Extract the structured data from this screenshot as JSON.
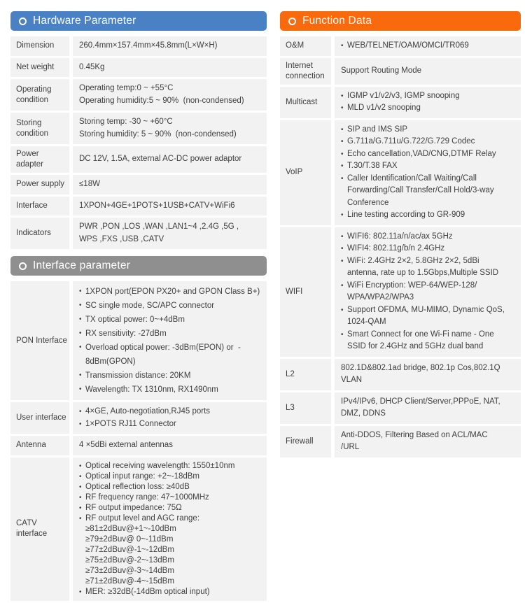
{
  "page": {
    "background": "#ffffff",
    "row_bg": "#f2f2f2",
    "text_color": "#3e3e3e"
  },
  "icons": {
    "header_bullet": "circle-outline",
    "list_bullet": "dot"
  },
  "sections": [
    {
      "id": "hardware-parameter",
      "column": "left",
      "title": "Hardware Parameter",
      "accent": "#4a81c4",
      "rows": [
        {
          "label": "Dimension",
          "lines": [
            {
              "t": "260.4mm×157.4mm×45.8mm(L×W×H)"
            }
          ]
        },
        {
          "label": "Net weight",
          "lines": [
            {
              "t": "0.45Kg"
            }
          ]
        },
        {
          "label": "Operating condition",
          "lines": [
            {
              "t": "Operating temp:0 ~ +55°C"
            },
            {
              "t": "Operating humidity:5 ~ 90%  (non-condensed)"
            }
          ]
        },
        {
          "label": "Storing condition",
          "lines": [
            {
              "t": "Storing temp: -30 ~ +60°C"
            },
            {
              "t": "Storing humidity: 5 ~ 90%  (non-condensed)"
            }
          ]
        },
        {
          "label": "Power adapter",
          "lines": [
            {
              "t": "DC 12V, 1.5A, external AC-DC power adaptor"
            }
          ]
        },
        {
          "label": "Power supply",
          "lines": [
            {
              "t": "≤18W"
            }
          ]
        },
        {
          "label": "Interface",
          "lines": [
            {
              "t": "1XPON+4GE+1POTS+1USB+CATV+WiFi6"
            }
          ]
        },
        {
          "label": "Indicators",
          "lines": [
            {
              "t": "PWR ,PON ,LOS ,WAN ,LAN1~4 ,2.4G ,5G ,"
            },
            {
              "t": "WPS ,FXS ,USB ,CATV"
            }
          ]
        }
      ]
    },
    {
      "id": "interface-parameter",
      "column": "left",
      "title": "Interface parameter",
      "accent": "#8f8f8f",
      "rows": [
        {
          "label": "PON Interface",
          "density": "roomy",
          "lines": [
            {
              "t": "1XPON port(EPON PX20+ and GPON Class B+)",
              "bullet": true
            },
            {
              "t": "SC single mode, SC/APC connector",
              "bullet": true
            },
            {
              "t": "TX optical power: 0~+4dBm",
              "bullet": true
            },
            {
              "t": "RX sensitivity: -27dBm",
              "bullet": true
            },
            {
              "t": "Overload optical power: -3dBm(EPON) or  -",
              "bullet": true
            },
            {
              "t": "8dBm(GPON)",
              "indent": true
            },
            {
              "t": "Transmission distance: 20KM",
              "bullet": true
            },
            {
              "t": "Wavelength: TX 1310nm, RX1490nm",
              "bullet": true
            }
          ]
        },
        {
          "label": "User interface",
          "lines": [
            {
              "t": "4×GE, Auto-negotiation,RJ45 ports",
              "bullet": true
            },
            {
              "t": "1×POTS RJ11 Connector",
              "bullet": true
            }
          ]
        },
        {
          "label": "Antenna",
          "lines": [
            {
              "t": "4 ×5dBi external antennas"
            }
          ]
        },
        {
          "label": "CATV interface",
          "density": "compact",
          "lines": [
            {
              "t": "Optical receiving wavelength: 1550±10nm",
              "bullet": true
            },
            {
              "t": "Optical input range: +2~-18dBm",
              "bullet": true
            },
            {
              "t": "Optical reflection loss: ≥40dB",
              "bullet": true
            },
            {
              "t": "RF frequency range: 47~1000MHz",
              "bullet": true
            },
            {
              "t": "RF output impedance: 75Ω",
              "bullet": true
            },
            {
              "t": "RF output level and AGC range:",
              "bullet": true
            },
            {
              "t": "≥81±2dBuv@+1~-10dBm",
              "indent": true
            },
            {
              "t": "≥79±2dBuv@ 0~-11dBm",
              "indent": true
            },
            {
              "t": "≥77±2dBuv@-1~-12dBm",
              "indent": true
            },
            {
              "t": "≥75±2dBuv@-2~-13dBm",
              "indent": true
            },
            {
              "t": "≥73±2dBuv@-3~-14dBm",
              "indent": true
            },
            {
              "t": "≥71±2dBuv@-4~-15dBm",
              "indent": true
            },
            {
              "t": "MER: ≥32dB(-14dBm optical input)",
              "bullet": true
            }
          ]
        }
      ]
    },
    {
      "id": "function-data",
      "column": "right",
      "title": "Function Data",
      "accent": "#f9690e",
      "rows": [
        {
          "label": "O&M",
          "lines": [
            {
              "t": "WEB/TELNET/OAM/OMCI/TR069",
              "bullet": true
            }
          ]
        },
        {
          "label": "Internet connection",
          "lines": [
            {
              "t": "Support Routing Mode"
            }
          ]
        },
        {
          "label": "Multicast",
          "lines": [
            {
              "t": "IGMP v1/v2/v3, IGMP snooping",
              "bullet": true
            },
            {
              "t": "MLD v1/v2 snooping",
              "bullet": true
            }
          ]
        },
        {
          "label": "VoIP",
          "lines": [
            {
              "t": "SIP and IMS SIP",
              "bullet": true
            },
            {
              "t": "G.711a/G.711u/G.722/G.729 Codec",
              "bullet": true
            },
            {
              "t": "Echo cancellation,VAD/CNG,DTMF Relay",
              "bullet": true
            },
            {
              "t": "T.30/T.38 FAX",
              "bullet": true
            },
            {
              "t": "Caller Identification/Call Waiting/Call",
              "bullet": true
            },
            {
              "t": "Forwarding/Call Transfer/Call Hold/3-way",
              "indent": true
            },
            {
              "t": "Conference",
              "indent": true
            },
            {
              "t": "Line testing according to GR-909",
              "bullet": true
            }
          ]
        },
        {
          "label": "WIFI",
          "lines": [
            {
              "t": "WIFI6: 802.11a/n/ac/ax 5GHz",
              "bullet": true
            },
            {
              "t": "WIFI4: 802.11g/b/n 2.4GHz",
              "bullet": true
            },
            {
              "t": "WiFi: 2.4GHz 2×2, 5.8GHz 2×2, 5dBi",
              "bullet": true
            },
            {
              "t": "antenna, rate up to 1.5Gbps,Multiple SSID",
              "indent": true
            },
            {
              "t": "WiFi Encryption: WEP-64/WEP-128/",
              "bullet": true
            },
            {
              "t": "WPA/WPA2/WPA3",
              "indent": true
            },
            {
              "t": "Support OFDMA, MU-MIMO, Dynamic QoS,",
              "bullet": true
            },
            {
              "t": "1024-QAM",
              "indent": true
            },
            {
              "t": "Smart Connect for one Wi-Fi name - One",
              "bullet": true
            },
            {
              "t": "SSID for 2.4GHz and 5GHz dual band",
              "indent": true
            }
          ]
        },
        {
          "label": "L2",
          "lines": [
            {
              "t": "802.1D&802.1ad bridge, 802.1p Cos,802.1Q"
            },
            {
              "t": "VLAN"
            }
          ]
        },
        {
          "label": "L3",
          "lines": [
            {
              "t": "IPv4/IPv6, DHCP Client/Server,PPPoE, NAT,"
            },
            {
              "t": "DMZ, DDNS"
            }
          ]
        },
        {
          "label": "Firewall",
          "lines": [
            {
              "t": "Anti-DDOS, Filtering Based on ACL/MAC"
            },
            {
              "t": "/URL"
            }
          ]
        }
      ]
    }
  ]
}
